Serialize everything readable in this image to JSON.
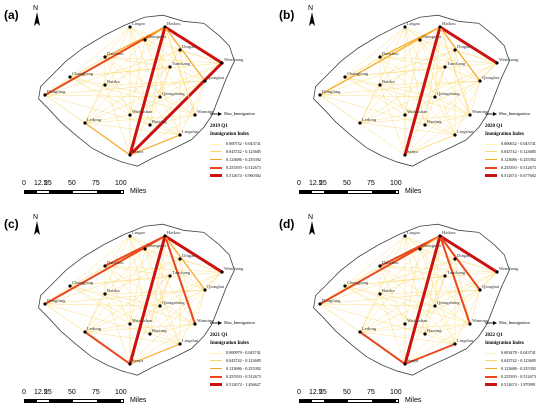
{
  "panels": [
    {
      "label": "(a)",
      "year": "2019 Q1",
      "max_label": "Max_Immigration",
      "legend_title": "Immigration Index",
      "legend": [
        "0.000732 - 0.043741",
        "0.043742 - 0.123685",
        "0.123686 - 0.255392",
        "0.255393 - 0.512673",
        "0.512674 - 0.960302"
      ]
    },
    {
      "label": "(b)",
      "year": "2020 Q1",
      "max_label": "Max_Immigration",
      "legend_title": "Immigration Index",
      "legend": [
        "0.000632 - 0.043741",
        "0.043742 - 0.123685",
        "0.123686 - 0.255392",
        "0.255393 - 0.512673",
        "0.512674 - 0.677602"
      ]
    },
    {
      "label": "(c)",
      "year": "2021 Q1",
      "max_label": "Max_Immigration",
      "legend_title": "Immigration Index",
      "legend": [
        "0.000979 - 0.043741",
        "0.043742 - 0.123685",
        "0.123686 - 0.255392",
        "0.255393 - 0.512673",
        "0.512674 - 1.456627"
      ]
    },
    {
      "label": "(d)",
      "year": "2022 Q1",
      "max_label": "Max_Immigration",
      "legend_title": "Immigration Index",
      "legend": [
        "0.003478 - 0.043741",
        "0.043742 - 0.123685",
        "0.123686 - 0.255392",
        "0.255393 - 0.512673",
        "0.512674 - 1.870991"
      ]
    }
  ],
  "legend_colors": [
    "#fff2b3",
    "#fbd76a",
    "#f5a623",
    "#e8481c",
    "#cc1111"
  ],
  "north_label": "N",
  "scale": {
    "ticks": [
      "0",
      "12.5",
      "25",
      "50",
      "75",
      "100"
    ],
    "unit": "Miles"
  },
  "cities": [
    "Haikou",
    "Dingan",
    "Wenchang",
    "Qionghai",
    "Tunchang",
    "Chengmai",
    "Lingao",
    "Danzhou",
    "Baisha",
    "Changjiang",
    "Dongfang",
    "Qiongzhong",
    "Wanning",
    "Ledong",
    "Wuzhishan",
    "Baoting",
    "Lingshui",
    "Sanya"
  ]
}
